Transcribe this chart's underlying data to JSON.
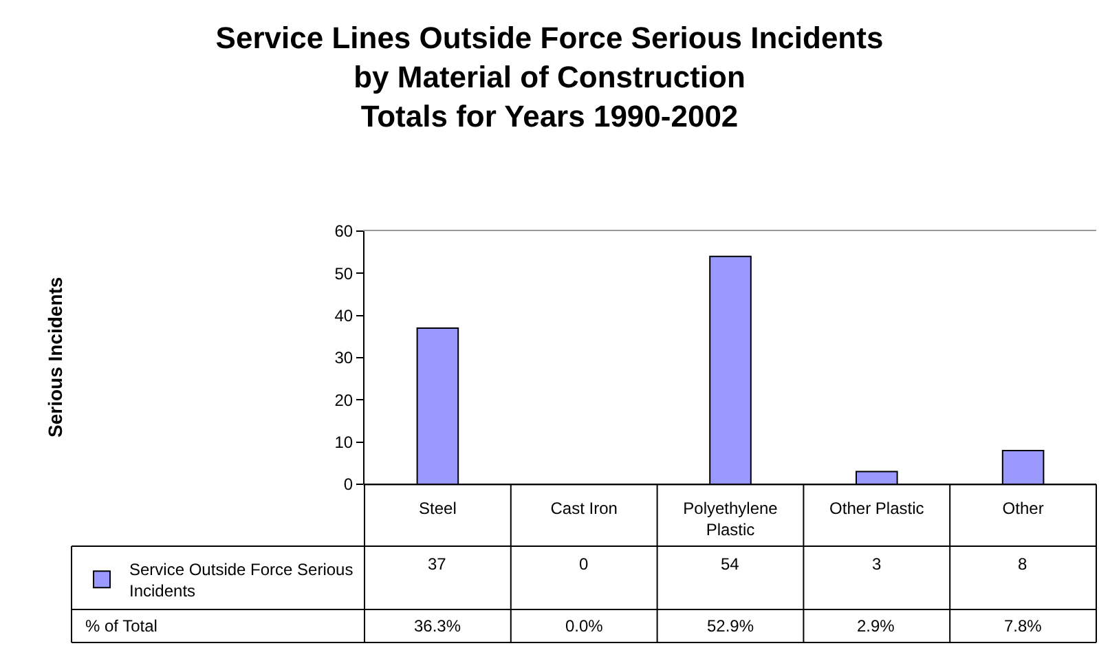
{
  "chart_data": {
    "type": "bar",
    "title": "Service Lines Outside Force Serious Incidents\nby Material of Construction\nTotals for Years 1990-2002",
    "categories": [
      "Steel",
      "Cast Iron",
      "Polyethylene Plastic",
      "Other Plastic",
      "Other"
    ],
    "series": [
      {
        "name": "Service Outside Force Serious Incidents",
        "color": "#9999ff",
        "values": [
          37,
          0,
          54,
          3,
          8
        ]
      }
    ],
    "ylim": [
      0,
      60
    ],
    "yticks": [
      0,
      10,
      20,
      30,
      40,
      50,
      60
    ],
    "legend": "bottom left",
    "data_labels": true,
    "annotations": [
      "Serious Incidents",
      "% of Total",
      "36.3%",
      "0.0%",
      "52.9%",
      "2.9%",
      "7.8%"
    ]
  }
}
